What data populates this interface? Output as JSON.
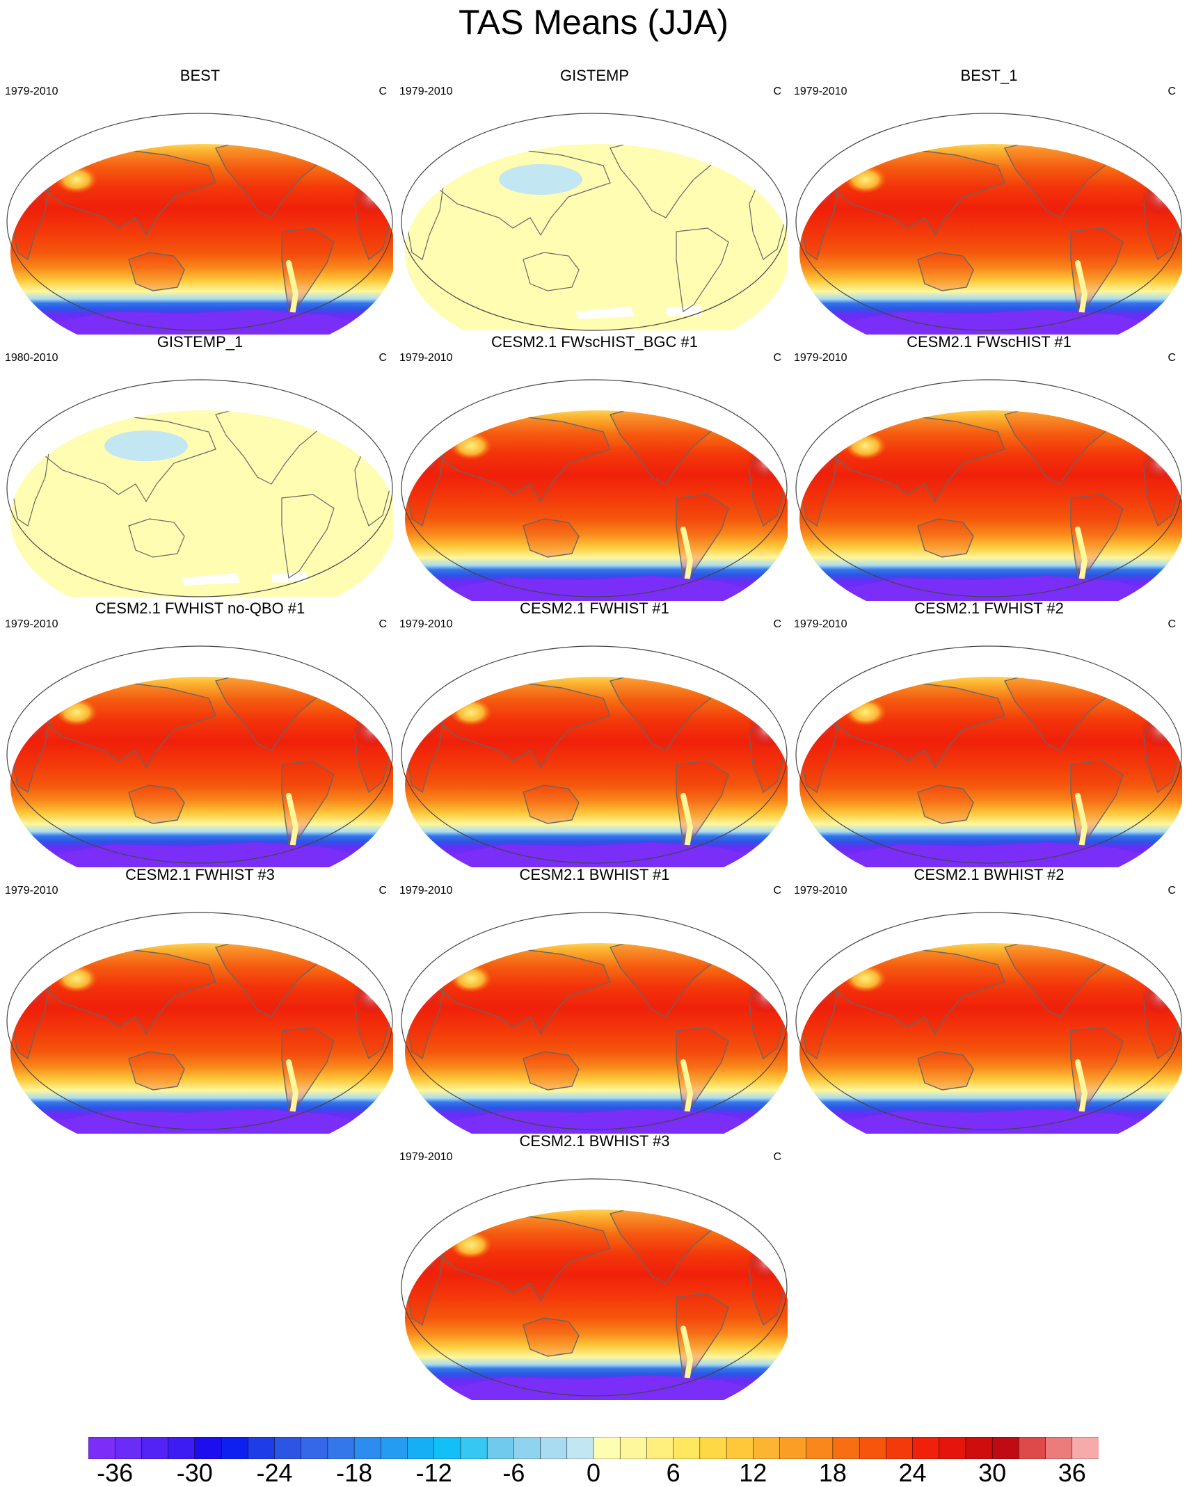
{
  "title": "TAS Means (JJA)",
  "colors": {
    "levels": [
      "#7a2ef7",
      "#6a2cf7",
      "#5323f5",
      "#3d1cf3",
      "#1d0ef0",
      "#0d20f0",
      "#1f3ce9",
      "#2c55e6",
      "#3568e8",
      "#3477eb",
      "#2c8cf0",
      "#239cf1",
      "#16aff5",
      "#12bff7",
      "#36c7f2",
      "#6fcaed",
      "#8fd3ee",
      "#a9dcf0",
      "#c3e6f3",
      "#fefdb2",
      "#fff79b",
      "#fff07d",
      "#ffe85f",
      "#ffd945",
      "#fec83a",
      "#fcb532",
      "#fb9e26",
      "#f9871b",
      "#f76f12",
      "#f5560c",
      "#f43a0a",
      "#f0200a",
      "#e5150b",
      "#cf0d0d",
      "#c00b14",
      "#de4a4a",
      "#ec7c7c",
      "#f6aaaa"
    ],
    "coastline": "#666666",
    "warm_land_accent": "#d94d63"
  },
  "colorbar": {
    "units": "C",
    "tick_labels": [
      "-36",
      "-30",
      "-24",
      "-18",
      "-12",
      "-6",
      "0",
      "6",
      "12",
      "18",
      "24",
      "30",
      "36"
    ]
  },
  "panels": [
    {
      "title": "BEST",
      "period": "1979-2010",
      "units": "C",
      "style": "model"
    },
    {
      "title": "GISTEMP",
      "period": "1979-2010",
      "units": "C",
      "style": "anomaly"
    },
    {
      "title": "BEST_1",
      "period": "1979-2010",
      "units": "C",
      "style": "model"
    },
    {
      "title": "GISTEMP_1",
      "period": "1980-2010",
      "units": "C",
      "style": "anomaly"
    },
    {
      "title": "CESM2.1 FWscHIST_BGC #1",
      "period": "1979-2010",
      "units": "C",
      "style": "model"
    },
    {
      "title": "CESM2.1 FWscHIST #1",
      "period": "1979-2010",
      "units": "C",
      "style": "model"
    },
    {
      "title": "CESM2.1 FWHIST no-QBO #1",
      "period": "1979-2010",
      "units": "C",
      "style": "model"
    },
    {
      "title": "CESM2.1 FWHIST #1",
      "period": "1979-2010",
      "units": "C",
      "style": "model"
    },
    {
      "title": "CESM2.1 FWHIST #2",
      "period": "1979-2010",
      "units": "C",
      "style": "model"
    },
    {
      "title": "CESM2.1 FWHIST #3",
      "period": "1979-2010",
      "units": "C",
      "style": "model"
    },
    {
      "title": "CESM2.1 BWHIST #1",
      "period": "1979-2010",
      "units": "C",
      "style": "model"
    },
    {
      "title": "CESM2.1 BWHIST #2",
      "period": "1979-2010",
      "units": "C",
      "style": "model"
    },
    {
      "title": "CESM2.1 BWHIST #3",
      "period": "1979-2010",
      "units": "C",
      "style": "model"
    }
  ]
}
